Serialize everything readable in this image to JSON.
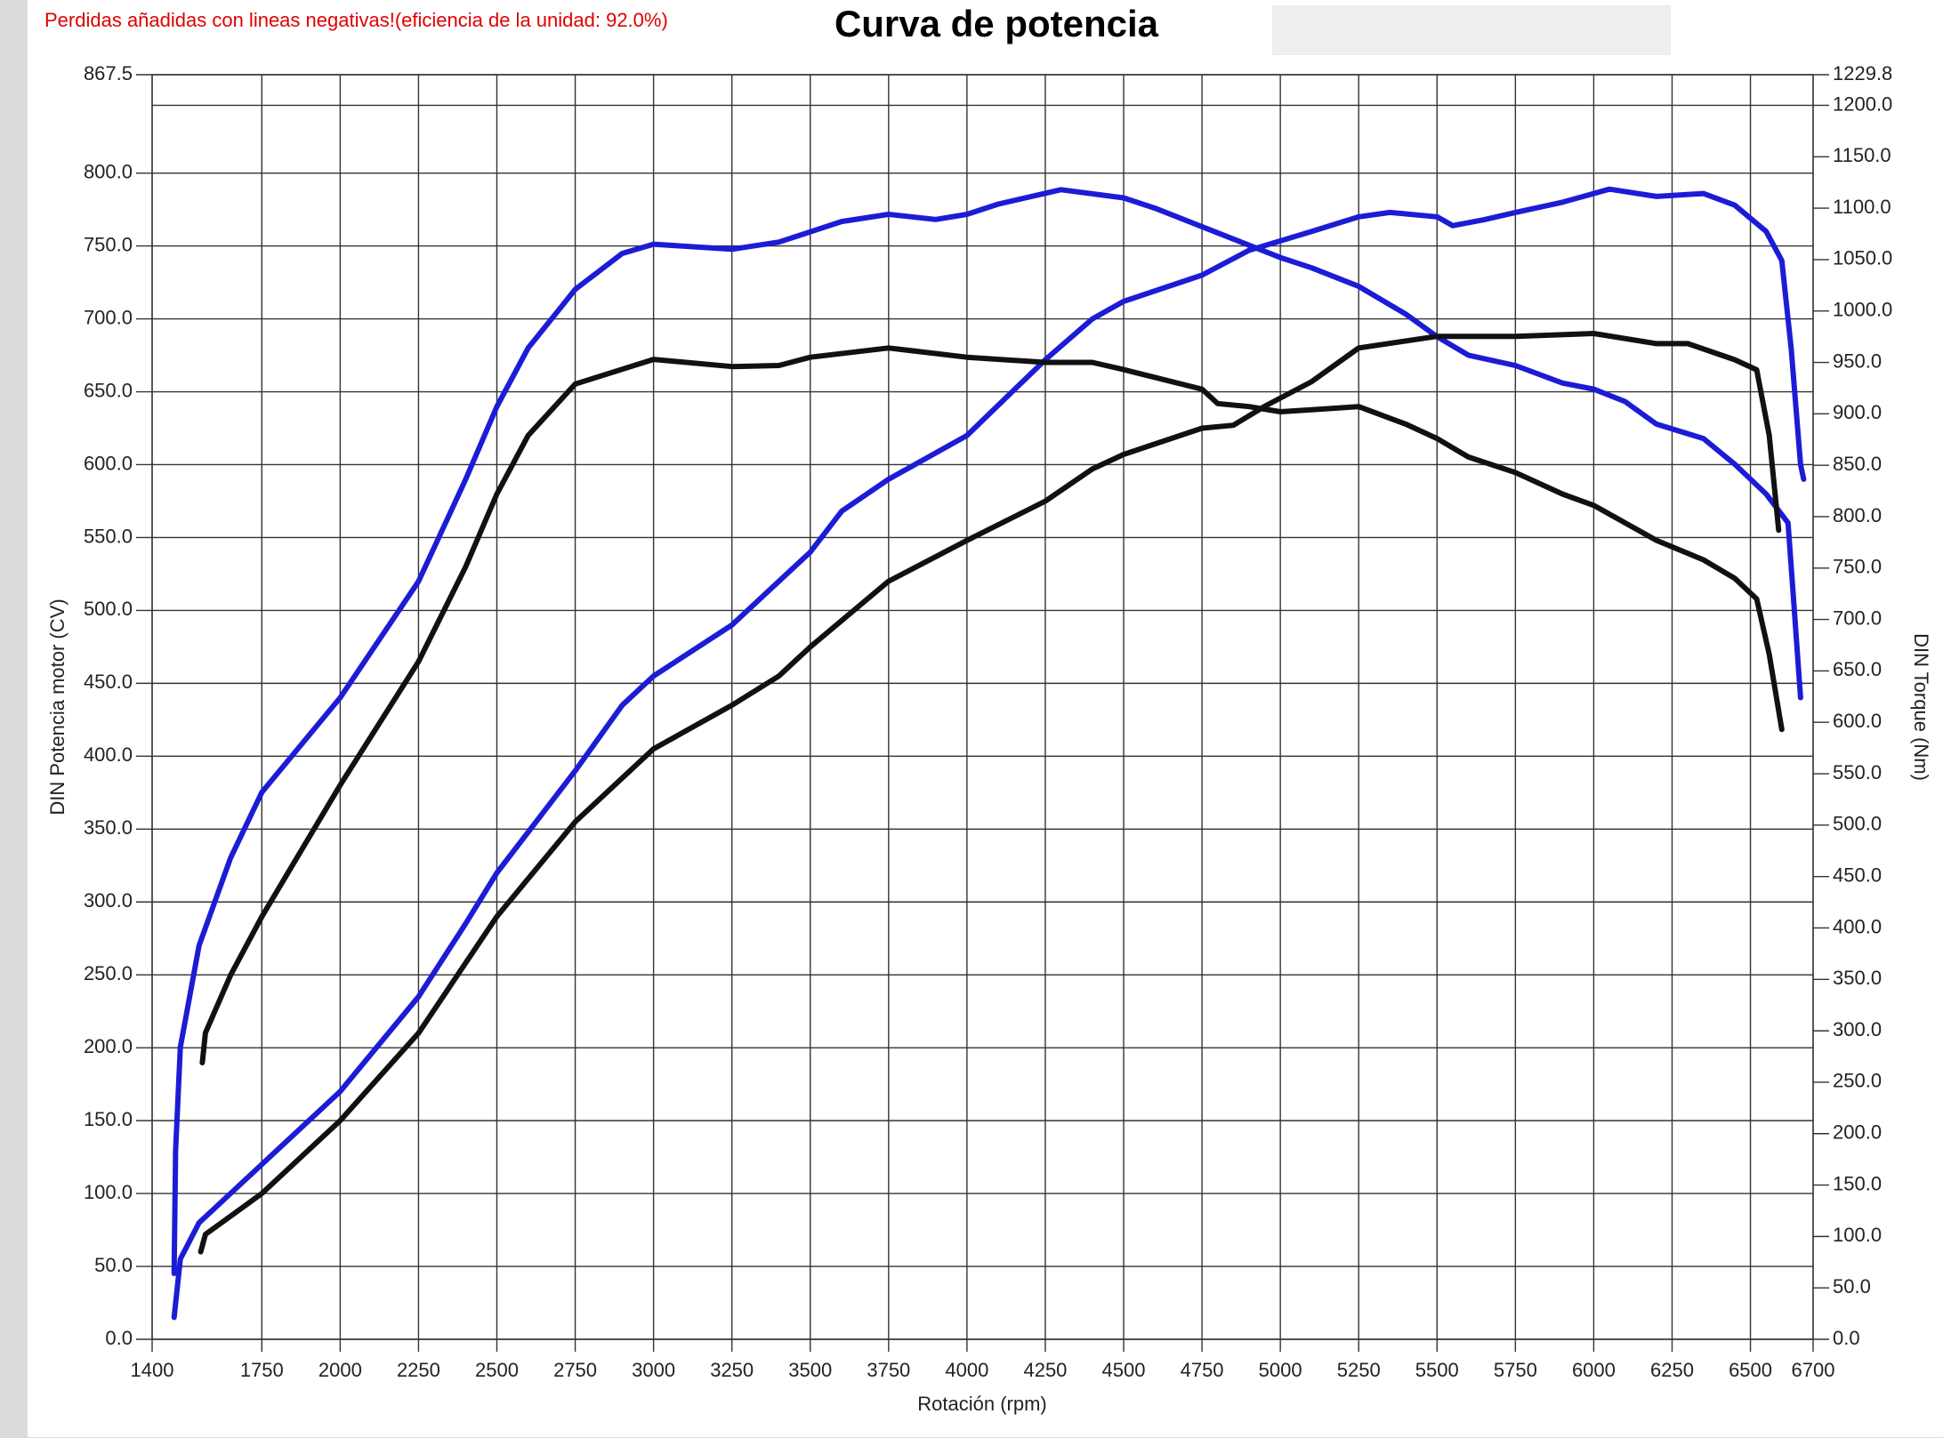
{
  "chart_data": {
    "type": "line",
    "title": "Curva de potencia",
    "note": "Perdidas añadidas con lineas negativas!(eficiencia de la unidad: 92.0%)",
    "x_label": "Rotación (rpm)",
    "y_label": "DIN Potencia motor (CV)",
    "y2_label": "DIN Torque (Nm)",
    "xlim": [
      1400,
      6700
    ],
    "xticks": [
      1400,
      1750,
      2000,
      2250,
      2500,
      2750,
      3000,
      3250,
      3500,
      3750,
      4000,
      4250,
      4500,
      4750,
      5000,
      5250,
      5500,
      5750,
      6000,
      6250,
      6500,
      6700
    ],
    "ylim": [
      0,
      867.5
    ],
    "yticks": [
      {
        "value": 0,
        "label": "0.0"
      },
      {
        "value": 50,
        "label": "50.0"
      },
      {
        "value": 100,
        "label": "100.0"
      },
      {
        "value": 150,
        "label": "150.0"
      },
      {
        "value": 200,
        "label": "200.0"
      },
      {
        "value": 250,
        "label": "250.0"
      },
      {
        "value": 300,
        "label": "300.0"
      },
      {
        "value": 350,
        "label": "350.0"
      },
      {
        "value": 400,
        "label": "400.0"
      },
      {
        "value": 450,
        "label": "450.0"
      },
      {
        "value": 500,
        "label": "500.0"
      },
      {
        "value": 550,
        "label": "550.0"
      },
      {
        "value": 600,
        "label": "600.0"
      },
      {
        "value": 650,
        "label": "650.0"
      },
      {
        "value": 700,
        "label": "700.0"
      },
      {
        "value": 750,
        "label": "750.0"
      },
      {
        "value": 800,
        "label": "800.0"
      },
      {
        "value": 867.5,
        "label": "867.5"
      }
    ],
    "y2lim": [
      0,
      1229.8
    ],
    "y2ticks": [
      {
        "value": 0,
        "label": "0.0"
      },
      {
        "value": 50,
        "label": "50.0"
      },
      {
        "value": 100,
        "label": "100.0"
      },
      {
        "value": 150,
        "label": "150.0"
      },
      {
        "value": 200,
        "label": "200.0"
      },
      {
        "value": 250,
        "label": "250.0"
      },
      {
        "value": 300,
        "label": "300.0"
      },
      {
        "value": 350,
        "label": "350.0"
      },
      {
        "value": 400,
        "label": "400.0"
      },
      {
        "value": 450,
        "label": "450.0"
      },
      {
        "value": 500,
        "label": "500.0"
      },
      {
        "value": 550,
        "label": "550.0"
      },
      {
        "value": 600,
        "label": "600.0"
      },
      {
        "value": 650,
        "label": "650.0"
      },
      {
        "value": 700,
        "label": "700.0"
      },
      {
        "value": 750,
        "label": "750.0"
      },
      {
        "value": 800,
        "label": "800.0"
      },
      {
        "value": 850,
        "label": "850.0"
      },
      {
        "value": 900,
        "label": "900.0"
      },
      {
        "value": 950,
        "label": "950.0"
      },
      {
        "value": 1000,
        "label": "1000.0"
      },
      {
        "value": 1050,
        "label": "1050.0"
      },
      {
        "value": 1100,
        "label": "1100.0"
      },
      {
        "value": 1150,
        "label": "1150.0"
      },
      {
        "value": 1200,
        "label": "1200.0"
      },
      {
        "value": 1229.8,
        "label": "1229.8"
      }
    ],
    "grid": true,
    "series": [
      {
        "color": "#1c1cd6",
        "axis": "y2",
        "x": [
          1470,
          1475,
          1490,
          1550,
          1650,
          1750,
          2000,
          2250,
          2400,
          2500,
          2600,
          2750,
          2900,
          3000,
          3250,
          3400,
          3500,
          3600,
          3750,
          3900,
          4000,
          4100,
          4300,
          4500,
          4600,
          4750,
          5000,
          5100,
          5250,
          5400,
          5500,
          5600,
          5750,
          5900,
          6000,
          6100,
          6200,
          6350,
          6450,
          6550,
          6620,
          6640,
          6660
        ],
        "values": [
          64,
          184,
          284,
          383,
          468,
          532,
          624,
          737,
          836,
          907,
          964,
          1021,
          1056,
          1065,
          1060,
          1067,
          1077,
          1087,
          1094,
          1089,
          1094,
          1104,
          1118,
          1110,
          1100,
          1082,
          1052,
          1042,
          1024,
          997,
          975,
          957,
          947,
          930,
          924,
          912,
          890,
          876,
          851,
          822,
          794,
          709,
          624
        ]
      },
      {
        "color": "#1c1cd6",
        "x": [
          1470,
          1490,
          1550,
          1750,
          2000,
          2250,
          2400,
          2500,
          2750,
          2900,
          3000,
          3250,
          3500,
          3600,
          3750,
          4000,
          4250,
          4400,
          4500,
          4750,
          4900,
          5100,
          5250,
          5350,
          5500,
          5550,
          5650,
          5750,
          5900,
          6050,
          6200,
          6350,
          6450,
          6550,
          6600,
          6630,
          6660,
          6670
        ],
        "values": [
          15,
          55,
          80,
          120,
          170,
          235,
          285,
          320,
          390,
          435,
          455,
          490,
          540,
          568,
          590,
          620,
          672,
          700,
          712,
          730,
          747,
          760,
          770,
          773,
          770,
          764,
          768,
          773,
          780,
          789,
          784,
          786,
          778,
          760,
          740,
          680,
          600,
          590
        ]
      },
      {
        "color": "#111111",
        "axis": "y2",
        "x": [
          1560,
          1570,
          1650,
          1750,
          2000,
          2250,
          2400,
          2500,
          2600,
          2750,
          3000,
          3250,
          3400,
          3500,
          3750,
          4000,
          4250,
          4400,
          4500,
          4750,
          4800,
          4900,
          5000,
          5100,
          5250,
          5400,
          5500,
          5600,
          5750,
          5900,
          6000,
          6200,
          6350,
          6450,
          6520,
          6560,
          6600
        ],
        "values": [
          269,
          298,
          354,
          411,
          539,
          659,
          751,
          822,
          879,
          929,
          953,
          946,
          947,
          955,
          964,
          955,
          950,
          950,
          943,
          924,
          910,
          907,
          902,
          904,
          907,
          890,
          876,
          858,
          843,
          822,
          811,
          777,
          758,
          740,
          720,
          666,
          593
        ]
      },
      {
        "color": "#111111",
        "x": [
          1555,
          1570,
          1750,
          2000,
          2250,
          2500,
          2750,
          3000,
          3250,
          3400,
          3500,
          3750,
          4000,
          4250,
          4400,
          4500,
          4750,
          4850,
          4950,
          5100,
          5250,
          5500,
          5750,
          6000,
          6200,
          6300,
          6450,
          6520,
          6560,
          6590
        ],
        "values": [
          60,
          72,
          100,
          150,
          210,
          290,
          355,
          405,
          435,
          455,
          475,
          520,
          548,
          575,
          597,
          607,
          625,
          627,
          640,
          657,
          680,
          688,
          688,
          690,
          683,
          683,
          672,
          665,
          620,
          555
        ]
      }
    ]
  }
}
